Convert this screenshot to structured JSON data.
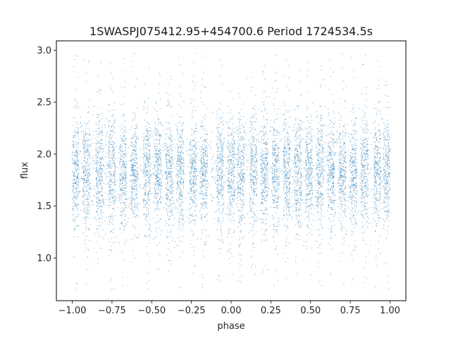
{
  "chart_data": {
    "type": "scatter",
    "title": "1SWASPJ075412.95+454700.6 Period 1724534.5s",
    "xlabel": "phase",
    "ylabel": "flux",
    "xlim": [
      -1.1,
      1.1
    ],
    "ylim": [
      0.59,
      3.09
    ],
    "x_ticks": [
      -1.0,
      -0.75,
      -0.5,
      -0.25,
      0.0,
      0.25,
      0.5,
      0.75,
      1.0
    ],
    "x_tick_labels": [
      "−1.00",
      "−0.75",
      "−0.50",
      "−0.25",
      "0.00",
      "0.25",
      "0.50",
      "0.75",
      "1.00"
    ],
    "y_ticks": [
      1.0,
      1.5,
      2.0,
      2.5,
      3.0
    ],
    "y_tick_labels": [
      "1.0",
      "1.5",
      "2.0",
      "2.5",
      "3.0"
    ],
    "grid": false,
    "marker_color": "#1f77b4",
    "series": [
      {
        "x_range": [
          -1.0,
          1.0
        ],
        "typical_flux": [
          1.4,
          2.25
        ],
        "flux_extremes": [
          0.7,
          2.97
        ],
        "density_clumps_phase": [
          -0.98,
          -0.91,
          -0.83,
          -0.75,
          -0.68,
          -0.61,
          -0.53,
          -0.46,
          -0.39,
          -0.32,
          -0.24,
          -0.17,
          -0.07,
          0.0,
          0.06,
          0.14,
          0.21,
          0.28,
          0.35,
          0.42,
          0.49,
          0.56,
          0.63,
          0.7,
          0.77,
          0.84,
          0.92,
          0.98
        ]
      }
    ]
  }
}
